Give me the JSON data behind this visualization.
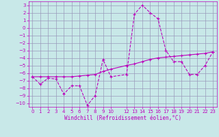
{
  "xlabel": "Windchill (Refroidissement éolien,°C)",
  "background_color": "#c8e8e8",
  "grid_color": "#9999bb",
  "line_color": "#bb00bb",
  "xlim": [
    -0.5,
    23.5
  ],
  "ylim": [
    -10.5,
    3.5
  ],
  "xticks": [
    0,
    1,
    2,
    3,
    4,
    5,
    6,
    7,
    8,
    9,
    10,
    12,
    13,
    14,
    15,
    16,
    17,
    18,
    19,
    20,
    21,
    22,
    23
  ],
  "yticks": [
    3,
    2,
    1,
    0,
    -1,
    -2,
    -3,
    -4,
    -5,
    -6,
    -7,
    -8,
    -9,
    -10
  ],
  "line1_x": [
    0,
    1,
    2,
    3,
    4,
    5,
    6,
    7,
    8,
    9,
    10,
    12,
    13,
    14,
    15,
    16,
    17,
    18,
    19,
    20,
    21,
    22,
    23
  ],
  "line1_y": [
    -6.5,
    -7.5,
    -6.7,
    -6.8,
    -8.8,
    -7.7,
    -7.7,
    -10.3,
    -9.0,
    -4.2,
    -6.5,
    -6.2,
    1.8,
    3.0,
    2.0,
    1.2,
    -3.0,
    -4.5,
    -4.5,
    -6.2,
    -6.2,
    -5.0,
    -3.2
  ],
  "line2_x": [
    0,
    1,
    2,
    3,
    4,
    5,
    6,
    7,
    8,
    9,
    10,
    12,
    13,
    14,
    15,
    16,
    17,
    18,
    19,
    20,
    21,
    22,
    23
  ],
  "line2_y": [
    -6.5,
    -6.5,
    -6.5,
    -6.5,
    -6.5,
    -6.5,
    -6.4,
    -6.3,
    -6.2,
    -5.8,
    -5.5,
    -5.0,
    -4.8,
    -4.5,
    -4.2,
    -4.0,
    -3.9,
    -3.8,
    -3.7,
    -3.6,
    -3.5,
    -3.4,
    -3.2
  ]
}
